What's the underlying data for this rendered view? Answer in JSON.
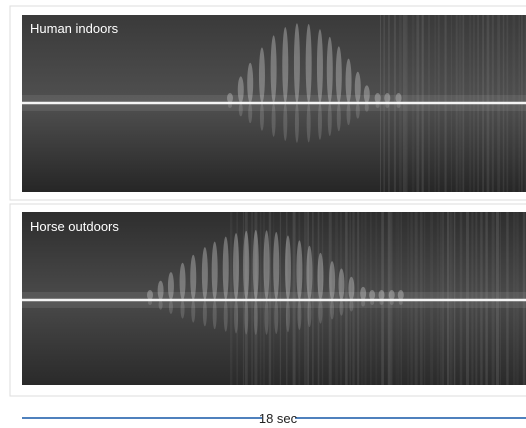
{
  "panels": [
    {
      "label": "Human indoors"
    },
    {
      "label": "Horse outdoors"
    }
  ],
  "scale": {
    "label": "18 sec"
  }
}
